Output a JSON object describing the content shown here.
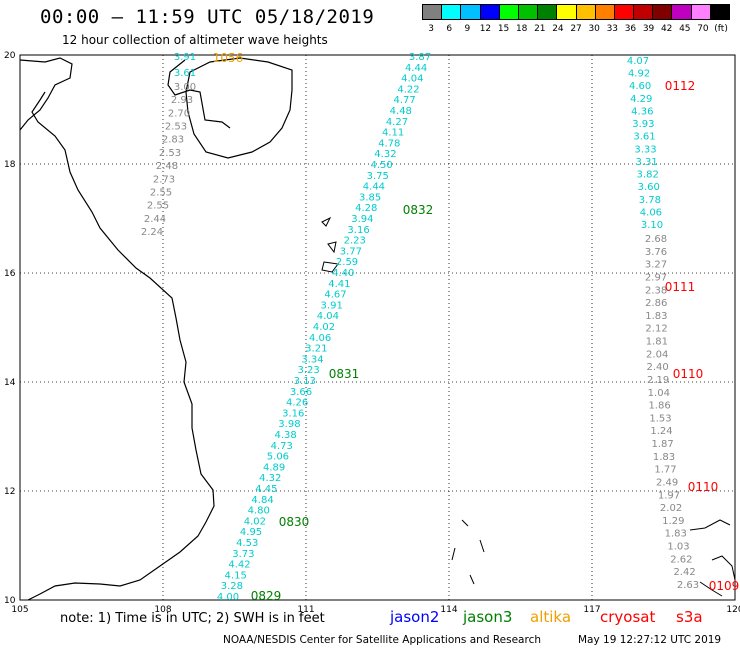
{
  "header": {
    "title": "00:00 – 11:59 UTC 05/18/2019",
    "subtitle": "12 hour collection of altimeter wave heights"
  },
  "legend": {
    "unit": "(ft)",
    "labels": [
      "3",
      "6",
      "9",
      "12",
      "15",
      "18",
      "21",
      "24",
      "27",
      "30",
      "33",
      "36",
      "39",
      "42",
      "45",
      "70"
    ],
    "colors": [
      "#808080",
      "#00ffff",
      "#00c0ff",
      "#0000ff",
      "#00ff00",
      "#00c000",
      "#008000",
      "#ffff00",
      "#ffc000",
      "#ff8000",
      "#ff0000",
      "#c00000",
      "#800000",
      "#c000c0",
      "#ff80ff",
      "#000000"
    ]
  },
  "map": {
    "lon_labels": [
      "105",
      "108",
      "111",
      "114",
      "117",
      "120"
    ],
    "lat_labels": [
      "20",
      "18",
      "16",
      "14",
      "12",
      "10"
    ],
    "lon_range": [
      105,
      120
    ],
    "lat_range": [
      10,
      20
    ],
    "tracks": [
      {
        "id": "jason3-a",
        "color": "#00cccc",
        "values": [
          "3.91",
          "3.61"
        ]
      },
      {
        "id": "altika-grey",
        "color": "#888888",
        "values": [
          "3.00",
          "2.93",
          "2.70",
          "2.53",
          "2.83",
          "2.53",
          "2.48",
          "2.73",
          "2.55",
          "2.55",
          "2.44",
          "2.24"
        ]
      },
      {
        "id": "jason3-main",
        "color": "#00cccc",
        "values": [
          "3.87",
          "4.44",
          "4.04",
          "4.22",
          "4.77",
          "4.48",
          "4.27",
          "4.11",
          "4.78",
          "4.32",
          "4.50",
          "3.75",
          "4.44",
          "3.85",
          "4.28",
          "3.94",
          "3.16",
          "2.23",
          "3.77",
          "2.59",
          "4.40",
          "4.41",
          "4.67",
          "3.91",
          "4.04",
          "4.02",
          "4.06",
          "3.21",
          "3.34",
          "3.23",
          "3.13",
          "3.66",
          "4.26",
          "3.16",
          "3.98",
          "4.38",
          "4.73",
          "5.06",
          "4.89",
          "4.32",
          "4.45",
          "4.84",
          "4.80",
          "4.02",
          "4.95",
          "4.53",
          "3.73",
          "4.42",
          "4.15",
          "3.28",
          "4.00"
        ]
      },
      {
        "id": "s3a-cyan",
        "color": "#00cccc",
        "values": [
          "4.07",
          "4.92",
          "4.60",
          "4.29",
          "4.36",
          "3.93",
          "3.61",
          "3.33",
          "3.31",
          "3.82",
          "3.60",
          "3.78",
          "4.06",
          "3.10"
        ]
      },
      {
        "id": "s3a-grey",
        "color": "#888888",
        "values": [
          "2.68",
          "3.76",
          "3.27",
          "2.97",
          "2.38",
          "2.86",
          "1.83",
          "2.12",
          "1.81",
          "2.04",
          "2.40",
          "2.19",
          "1.04",
          "1.86",
          "1.53",
          "1.24",
          "1.87",
          "1.83",
          "1.77",
          "2.49",
          "1.97",
          "2.02",
          "1.29",
          "1.83",
          "1.03",
          "2.62",
          "2.42",
          "2.63"
        ]
      }
    ],
    "time_labels": [
      {
        "text": "1056",
        "color": "#f0a000"
      },
      {
        "text": "0112",
        "color": "#ff0000"
      },
      {
        "text": "0832",
        "color": "#008000"
      },
      {
        "text": "0111",
        "color": "#ff0000"
      },
      {
        "text": "0831",
        "color": "#008000"
      },
      {
        "text": "0110",
        "color": "#ff0000"
      },
      {
        "text": "0830",
        "color": "#008000"
      },
      {
        "text": "0829",
        "color": "#008000"
      },
      {
        "text": "0110",
        "color": "#ff0000"
      },
      {
        "text": "0109",
        "color": "#ff0000"
      }
    ]
  },
  "footer": {
    "note": "note:  1) Time is in UTC;  2) SWH is in feet",
    "satellites": [
      {
        "name": "jason2",
        "color": "#0000ff"
      },
      {
        "name": "jason3",
        "color": "#008000"
      },
      {
        "name": "altika",
        "color": "#f0a000"
      },
      {
        "name": "cryosat",
        "color": "#ff0000"
      },
      {
        "name": "s3a",
        "color": "#ff0000"
      }
    ],
    "credit": "NOAA/NESDIS Center for Satellite Applications and Research",
    "timestamp": "May 19 12:27:12 UTC 2019"
  }
}
